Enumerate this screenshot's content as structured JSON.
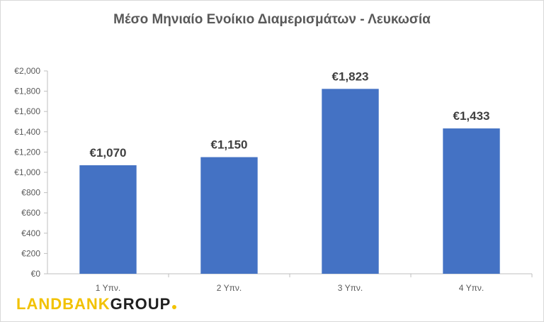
{
  "chart_data": {
    "type": "bar",
    "title": "Μέσο Μηνιαίο Ενοίκιο Διαμερισμάτων - Λευκωσία",
    "categories": [
      "1 Υπν.",
      "2 Υπν.",
      "3 Υπν.",
      "4 Υπν."
    ],
    "values": [
      1070,
      1150,
      1823,
      1433
    ],
    "data_labels": [
      "€1,070",
      "€1,150",
      "€1,823",
      "€1,433"
    ],
    "ylim": [
      0,
      2000
    ],
    "y_ticks": [
      0,
      200,
      400,
      600,
      800,
      1000,
      1200,
      1400,
      1600,
      1800,
      2000
    ],
    "y_tick_labels": [
      "€0",
      "€200",
      "€400",
      "€600",
      "€800",
      "€1,000",
      "€1,200",
      "€1,400",
      "€1,600",
      "€1,800",
      "€2,000"
    ],
    "grid": false,
    "legend": "none",
    "bar_color": "#4472c4"
  },
  "logo": {
    "part1": "LANDBANK",
    "part2": "GROUP",
    "color_part1": "#f2c200",
    "color_part2": "#1f1f1f",
    "dot_color": "#f2c200"
  }
}
